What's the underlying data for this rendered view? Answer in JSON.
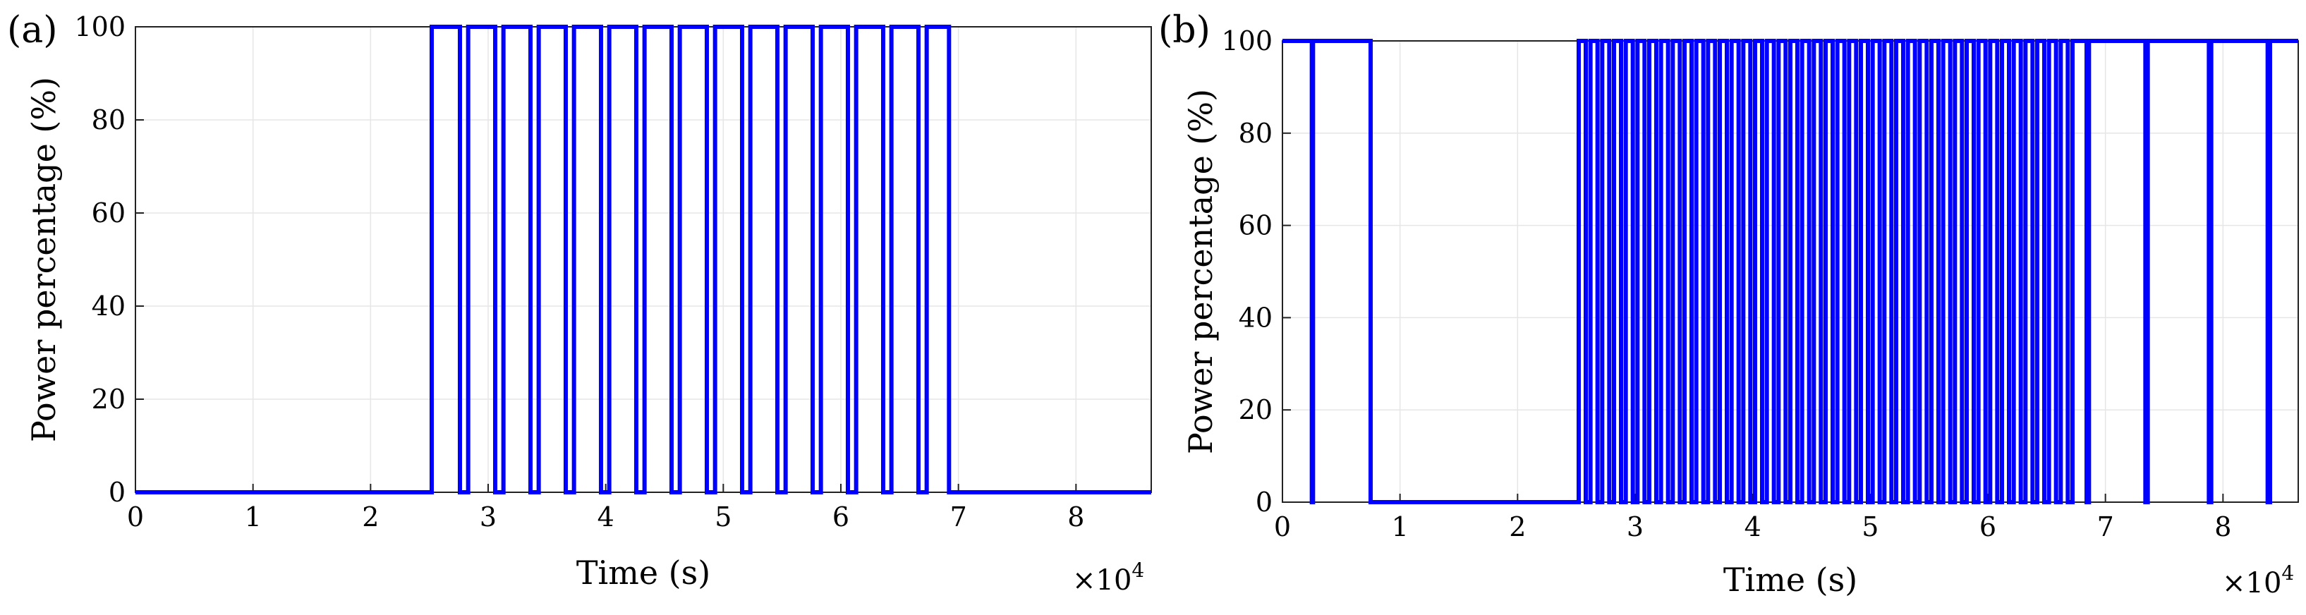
{
  "chart_data": [
    {
      "type": "line",
      "panel_label": "(a)",
      "xlabel": "Time (s)",
      "ylabel": "Power percentage (%)",
      "x_exponent_label": "×10",
      "x_exponent_power": "4",
      "xlim": [
        0,
        8.64
      ],
      "ylim": [
        0,
        100
      ],
      "xticks": [
        0,
        1,
        2,
        3,
        4,
        5,
        6,
        7,
        8
      ],
      "yticks": [
        0,
        20,
        40,
        60,
        80,
        100
      ],
      "grid": true,
      "color": "#0000ff",
      "on_intervals": [
        [
          2.52,
          2.76
        ],
        [
          2.83,
          3.06
        ],
        [
          3.13,
          3.36
        ],
        [
          3.43,
          3.66
        ],
        [
          3.73,
          3.96
        ],
        [
          4.03,
          4.26
        ],
        [
          4.33,
          4.56
        ],
        [
          4.63,
          4.86
        ],
        [
          4.93,
          5.16
        ],
        [
          5.23,
          5.46
        ],
        [
          5.53,
          5.76
        ],
        [
          5.83,
          6.06
        ],
        [
          6.13,
          6.36
        ],
        [
          6.43,
          6.66
        ],
        [
          6.73,
          6.92
        ]
      ]
    },
    {
      "type": "line",
      "panel_label": "(b)",
      "xlabel": "Time (s)",
      "ylabel": "Power percentage (%)",
      "x_exponent_label": "×10",
      "x_exponent_power": "4",
      "xlim": [
        0,
        8.64
      ],
      "ylim": [
        0,
        100
      ],
      "xticks": [
        0,
        1,
        2,
        3,
        4,
        5,
        6,
        7,
        8
      ],
      "yticks": [
        0,
        20,
        40,
        60,
        80,
        100
      ],
      "grid": true,
      "color": "#0000ff",
      "on_intervals": [
        [
          0,
          0.25
        ],
        [
          0.26,
          0.75
        ],
        [
          2.52,
          2.58
        ],
        [
          2.62,
          2.68
        ],
        [
          2.72,
          2.78
        ],
        [
          2.82,
          2.88
        ],
        [
          2.92,
          2.98
        ],
        [
          3.02,
          3.08
        ],
        [
          3.12,
          3.18
        ],
        [
          3.22,
          3.28
        ],
        [
          3.32,
          3.38
        ],
        [
          3.42,
          3.48
        ],
        [
          3.52,
          3.58
        ],
        [
          3.62,
          3.68
        ],
        [
          3.72,
          3.78
        ],
        [
          3.82,
          3.88
        ],
        [
          3.92,
          3.98
        ],
        [
          4.02,
          4.08
        ],
        [
          4.12,
          4.18
        ],
        [
          4.22,
          4.28
        ],
        [
          4.32,
          4.38
        ],
        [
          4.42,
          4.48
        ],
        [
          4.52,
          4.58
        ],
        [
          4.62,
          4.68
        ],
        [
          4.72,
          4.78
        ],
        [
          4.82,
          4.88
        ],
        [
          4.92,
          4.98
        ],
        [
          5.02,
          5.08
        ],
        [
          5.12,
          5.18
        ],
        [
          5.22,
          5.28
        ],
        [
          5.32,
          5.38
        ],
        [
          5.42,
          5.48
        ],
        [
          5.52,
          5.58
        ],
        [
          5.62,
          5.68
        ],
        [
          5.72,
          5.78
        ],
        [
          5.82,
          5.88
        ],
        [
          5.92,
          5.98
        ],
        [
          6.02,
          6.08
        ],
        [
          6.12,
          6.18
        ],
        [
          6.22,
          6.28
        ],
        [
          6.32,
          6.38
        ],
        [
          6.42,
          6.48
        ],
        [
          6.52,
          6.58
        ],
        [
          6.62,
          6.68
        ],
        [
          6.72,
          6.84
        ],
        [
          6.86,
          7.34
        ],
        [
          7.36,
          7.88
        ],
        [
          7.9,
          8.38
        ],
        [
          8.4,
          8.64
        ]
      ]
    }
  ]
}
